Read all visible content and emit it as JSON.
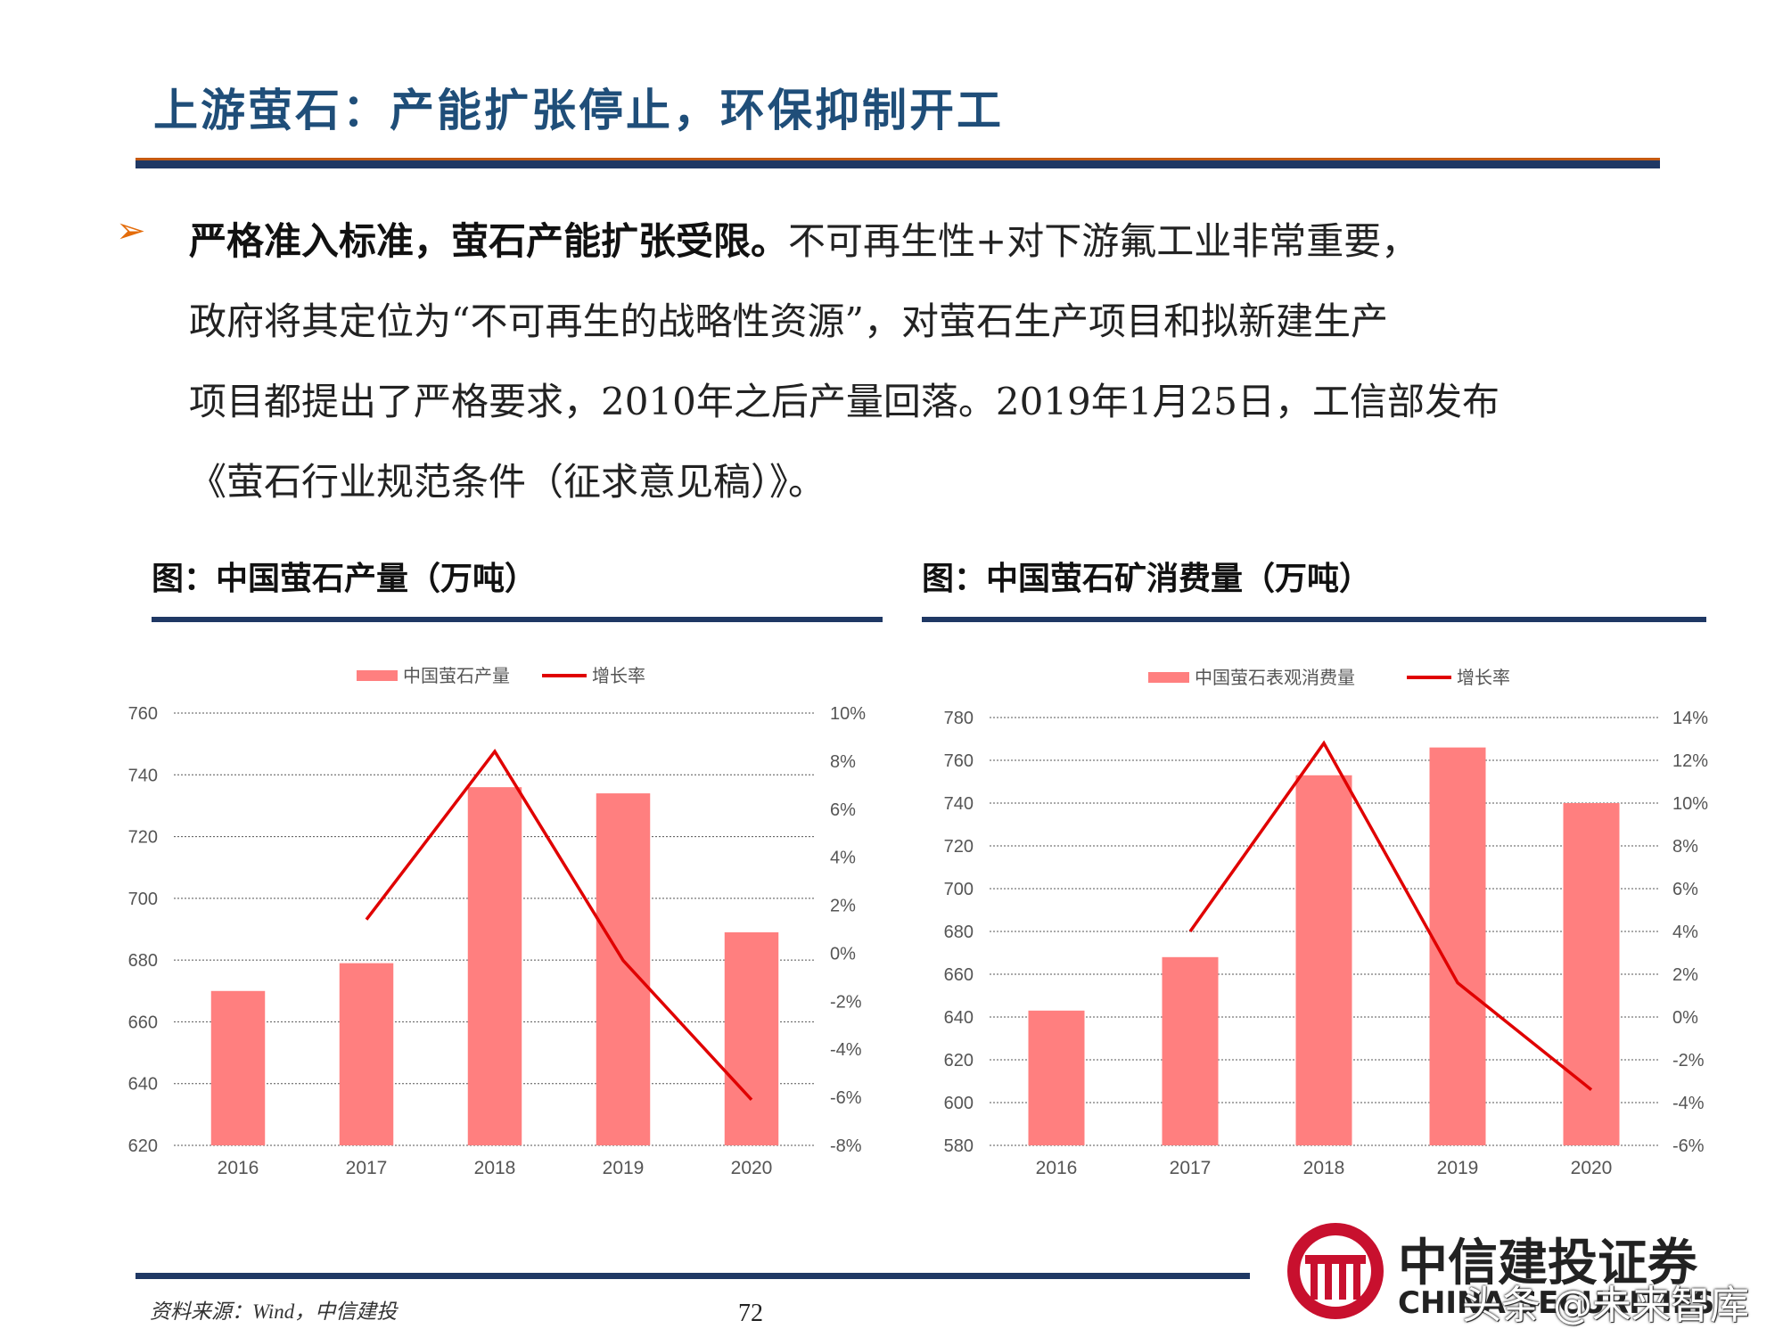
{
  "page": {
    "title": "上游萤石：产能扩张停止，环保抑制开工",
    "paragraph": {
      "bold": "严格准入标准，萤石产能扩张受限。",
      "line1_rest": "不可再生性+对下游氟工业非常重要，",
      "line2": "政府将其定位为“不可再生的战略性资源”，对萤石生产项目和拟新建生产",
      "line3": "项目都提出了严格要求，2010年之后产量回落。2019年1月25日，工信部发布",
      "line4": "《萤石行业规范条件（征求意见稿）》。"
    },
    "source": "资料来源：Wind，中信建投",
    "page_number": "72",
    "logo_name": "中信建投证券",
    "logo_en": "CHINA SECURITIES",
    "watermark": "头条 @未来智库"
  },
  "chart_data": [
    {
      "type": "bar",
      "title": "图：中国萤石产量（万吨）",
      "categories": [
        "2016",
        "2017",
        "2018",
        "2019",
        "2020"
      ],
      "series": [
        {
          "name": "中国萤石产量",
          "type": "bar",
          "axis": "left",
          "color": "#ff7f7f",
          "values": [
            670,
            679,
            736,
            734,
            689
          ]
        },
        {
          "name": "增长率",
          "type": "line",
          "axis": "right",
          "color": "#e00000",
          "values": [
            null,
            1.4,
            8.4,
            -0.3,
            -6.1
          ]
        }
      ],
      "ylim": [
        620,
        760
      ],
      "yticks": [
        "620",
        "640",
        "660",
        "680",
        "700",
        "720",
        "740",
        "760"
      ],
      "y2lim": [
        -8,
        10
      ],
      "y2ticks": [
        "-8%",
        "-6%",
        "-4%",
        "-2%",
        "0%",
        "2%",
        "4%",
        "6%",
        "8%",
        "10%"
      ],
      "legend": "top",
      "grid": "dashed horizontal"
    },
    {
      "type": "bar",
      "title": "图：中国萤石矿消费量（万吨）",
      "categories": [
        "2016",
        "2017",
        "2018",
        "2019",
        "2020"
      ],
      "series": [
        {
          "name": "中国萤石表观消费量",
          "type": "bar",
          "axis": "left",
          "color": "#ff7f7f",
          "values": [
            643,
            668,
            753,
            766,
            740
          ]
        },
        {
          "name": "增长率",
          "type": "line",
          "axis": "right",
          "color": "#e00000",
          "values": [
            null,
            4.0,
            12.8,
            1.6,
            -3.4
          ]
        }
      ],
      "ylim": [
        580,
        780
      ],
      "yticks": [
        "580",
        "600",
        "620",
        "640",
        "660",
        "680",
        "700",
        "720",
        "740",
        "760",
        "780"
      ],
      "y2lim": [
        -6,
        14
      ],
      "y2ticks": [
        "-6%",
        "-4%",
        "-2%",
        "0%",
        "2%",
        "4%",
        "6%",
        "8%",
        "10%",
        "12%",
        "14%"
      ],
      "legend": "top",
      "grid": "dashed horizontal"
    }
  ]
}
